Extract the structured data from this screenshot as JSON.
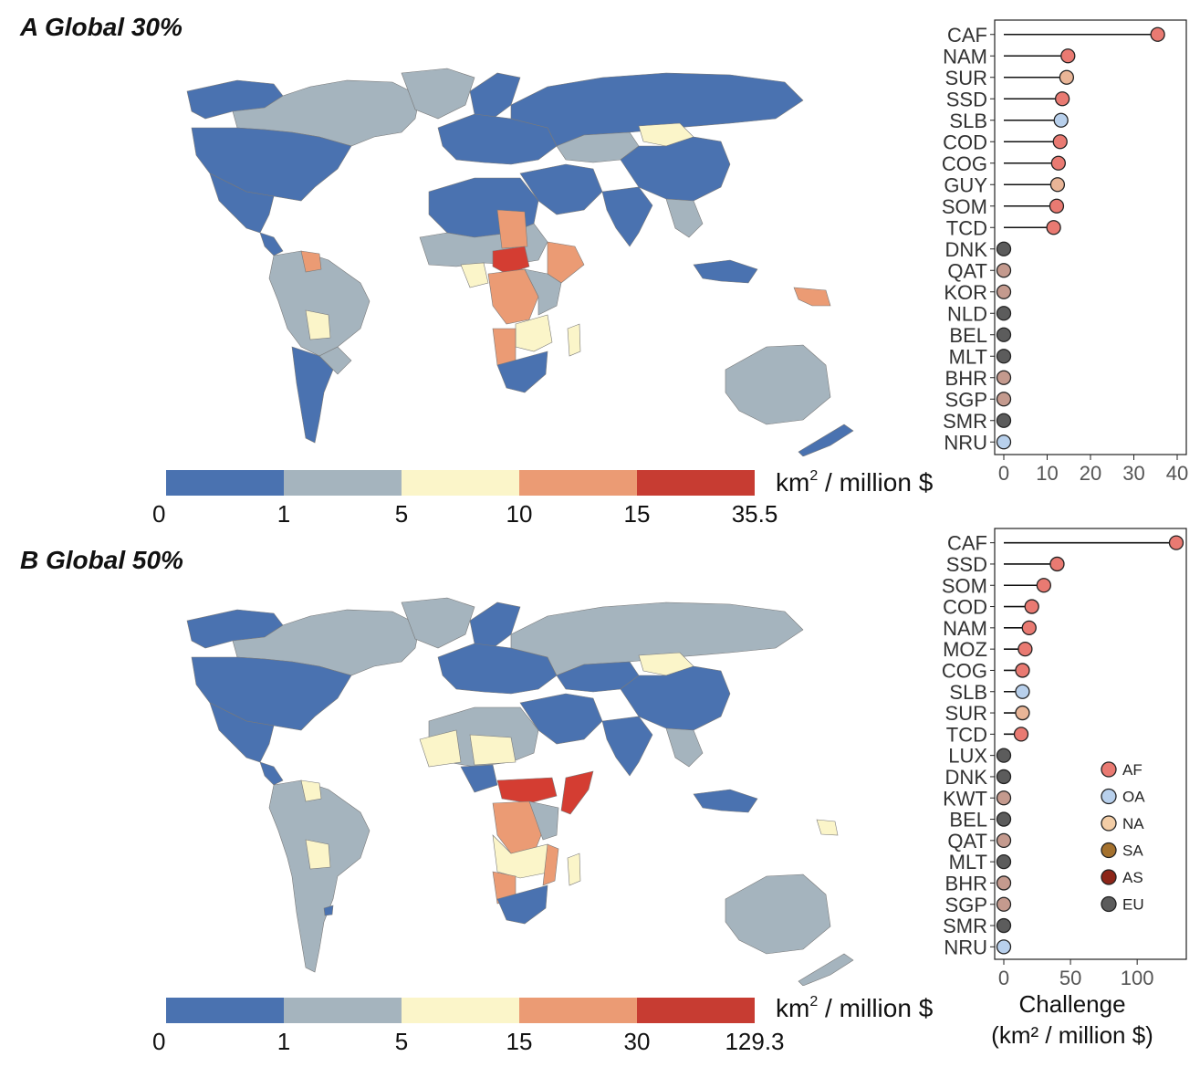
{
  "panels": [
    {
      "id": "A",
      "title": "A Global 30%",
      "legend": {
        "unit_prefix": "km",
        "unit_sup": "2",
        "unit_suffix": " / million $",
        "breaks": [
          "0",
          "1",
          "5",
          "10",
          "15",
          "35.5"
        ],
        "colors": [
          "#4a72b0",
          "#a5b4be",
          "#fbf5c9",
          "#eb9b74",
          "#c73c32"
        ]
      },
      "chart_data": {
        "type": "lollipop",
        "xlabel": "",
        "xlim": [
          0,
          40
        ],
        "ticks": [
          0,
          10,
          20,
          30,
          40
        ],
        "categories": [
          "CAF",
          "NAM",
          "SUR",
          "SSD",
          "SLB",
          "COD",
          "COG",
          "GUY",
          "SOM",
          "TCD",
          "DNK",
          "QAT",
          "KOR",
          "NLD",
          "BEL",
          "MLT",
          "BHR",
          "SGP",
          "SMR",
          "NRU"
        ],
        "values": [
          35.5,
          14.8,
          14.5,
          13.5,
          13.2,
          13.0,
          12.6,
          12.4,
          12.2,
          11.5,
          0,
          0,
          0,
          0,
          0,
          0,
          0,
          0,
          0,
          0
        ],
        "region": [
          "AF",
          "AF",
          "NA",
          "AF",
          "OA",
          "AF",
          "AF",
          "NA",
          "AF",
          "AF",
          "EU",
          "AS",
          "AS",
          "EU",
          "EU",
          "EU",
          "AS",
          "AS",
          "EU",
          "OA"
        ]
      }
    },
    {
      "id": "B",
      "title": "B Global 50%",
      "legend": {
        "unit_prefix": "km",
        "unit_sup": "2",
        "unit_suffix": " / million $",
        "breaks": [
          "0",
          "1",
          "5",
          "15",
          "30",
          "129.3"
        ],
        "colors": [
          "#4a72b0",
          "#a5b4be",
          "#fbf5c9",
          "#eb9b74",
          "#c73c32"
        ]
      },
      "chart_data": {
        "type": "lollipop",
        "xlabel_line1": "Challenge",
        "xlabel_line2": "(km² / million $)",
        "xlim": [
          0,
          130
        ],
        "ticks": [
          0,
          50,
          100
        ],
        "categories": [
          "CAF",
          "SSD",
          "SOM",
          "COD",
          "NAM",
          "MOZ",
          "COG",
          "SLB",
          "SUR",
          "TCD",
          "LUX",
          "DNK",
          "KWT",
          "BEL",
          "QAT",
          "MLT",
          "BHR",
          "SGP",
          "SMR",
          "NRU"
        ],
        "values": [
          129.3,
          40,
          30,
          21,
          19,
          16,
          14,
          14,
          14,
          13,
          0,
          0,
          0,
          0,
          0,
          0,
          0,
          0,
          0,
          0
        ],
        "region": [
          "AF",
          "AF",
          "AF",
          "AF",
          "AF",
          "AF",
          "AF",
          "OA",
          "NA",
          "AF",
          "EU",
          "EU",
          "AS",
          "EU",
          "AS",
          "EU",
          "AS",
          "AS",
          "EU",
          "OA"
        ]
      }
    }
  ],
  "region_legend": [
    {
      "code": "AF",
      "color": "#e97a72"
    },
    {
      "code": "OA",
      "color": "#b8d0ec"
    },
    {
      "code": "NA",
      "color": "#f3cda6"
    },
    {
      "code": "SA",
      "color": "#a4712e"
    },
    {
      "code": "AS",
      "color": "#8c2518"
    },
    {
      "code": "EU",
      "color": "#5c5c5c"
    }
  ],
  "point_colors": {
    "AF": "#e97a72",
    "OA": "#b8d0ec",
    "NA": "#e9b597",
    "SA": "#a4712e",
    "AS": "#c49a8e",
    "EU": "#5c5c5c"
  },
  "map_colors": {
    "blue": "#4a72b0",
    "grey": "#a5b4be",
    "yellow": "#fbf5c9",
    "orange": "#eb9b74",
    "red": "#d43d32"
  }
}
